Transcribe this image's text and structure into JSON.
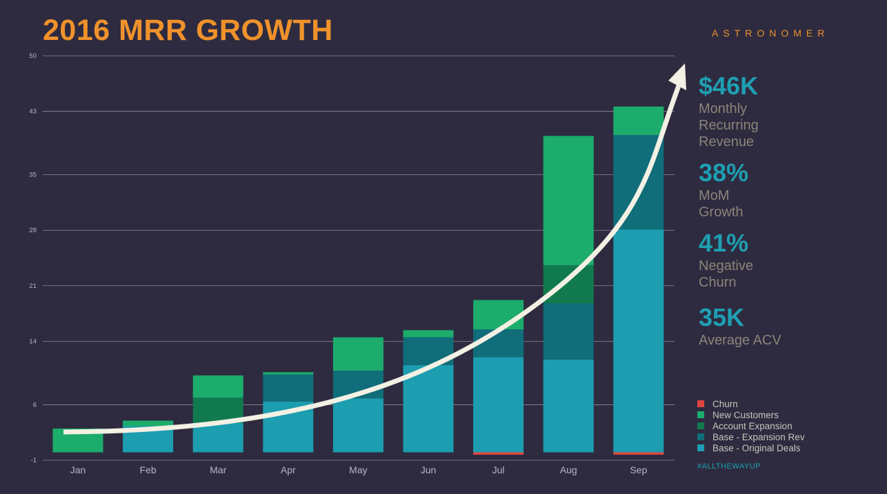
{
  "header": {
    "title": "2016 MRR GROWTH",
    "brand": "ASTRONOMER"
  },
  "stats": [
    {
      "value": "$46K",
      "label": "Monthly\nRecurring\nRevenue"
    },
    {
      "value": "38%",
      "label": "MoM\nGrowth"
    },
    {
      "value": "41%",
      "label": "Negative\nChurn"
    },
    {
      "value": "35K",
      "label": "Average ACV"
    }
  ],
  "hashtag": "#ALLTHEWAYUP",
  "colors": {
    "background": "#2e2b40",
    "grid": "#8c8a99",
    "tick_text": "#b9b5c4",
    "arrow": "#f3f0e4"
  },
  "chart_data": {
    "type": "bar",
    "stacked": true,
    "title": "2016 MRR GROWTH",
    "xlabel": "",
    "ylabel": "",
    "ylim": [
      -1,
      50
    ],
    "yticks": [
      -1,
      6,
      14,
      21,
      28,
      35,
      43,
      50
    ],
    "grid": true,
    "categories": [
      "Jan",
      "Feb",
      "Mar",
      "Apr",
      "May",
      "Jun",
      "Jul",
      "Aug",
      "Sep"
    ],
    "series": [
      {
        "name": "Churn",
        "color": "#e0453e",
        "values": [
          0,
          0,
          0,
          0,
          0,
          0,
          -0.3,
          0,
          -0.3
        ]
      },
      {
        "name": "New Customers",
        "color": "#1cac6c",
        "values": [
          3.0,
          0.7,
          2.8,
          0.3,
          4.2,
          0.9,
          3.7,
          16.3,
          3.6
        ]
      },
      {
        "name": "Account Expansion",
        "color": "#107a4e",
        "values": [
          0,
          0,
          3.2,
          0,
          0,
          0,
          0,
          4.8,
          0
        ]
      },
      {
        "name": "Base - Expansion Rev",
        "color": "#106d7a",
        "values": [
          0,
          0,
          0,
          3.4,
          3.5,
          3.5,
          3.5,
          7.1,
          11.9
        ]
      },
      {
        "name": "Base - Original Deals",
        "color": "#1c9db0",
        "values": [
          0,
          3.3,
          3.7,
          6.4,
          6.8,
          11.0,
          12.0,
          11.7,
          28.1
        ]
      }
    ],
    "legend_position": "right",
    "annotation": "upward growth arrow"
  }
}
